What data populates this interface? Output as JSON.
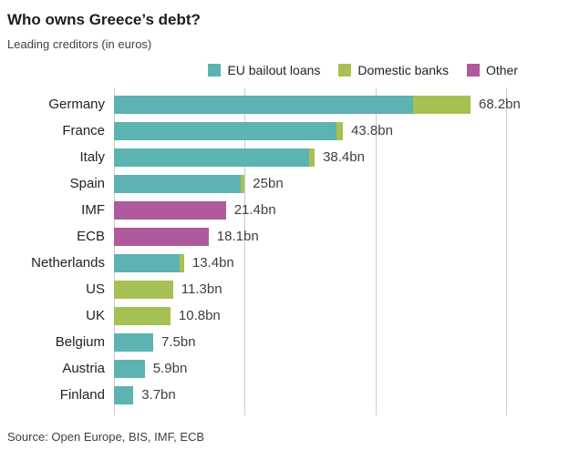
{
  "chart_data": {
    "type": "bar",
    "orientation": "horizontal",
    "title": "Who owns Greece’s debt?",
    "subtitle": "Leading creditors (in euros)",
    "source": "Source: Open Europe, BIS, IMF, ECB",
    "xlim": [
      0,
      75
    ],
    "gridlines": [
      0,
      25,
      50,
      75
    ],
    "grid": "vertical-only",
    "legend_position": "top-right",
    "legend": [
      {
        "label": "EU bailout loans",
        "color": "#5cb3b1"
      },
      {
        "label": "Domestic banks",
        "color": "#a6c153"
      },
      {
        "label": "Other",
        "color": "#ae5a9c"
      }
    ],
    "bars": [
      {
        "label": "Germany",
        "total": 68.2,
        "total_label": "68.2bn",
        "segments": [
          {
            "series": "EU bailout loans",
            "value": 57.2
          },
          {
            "series": "Domestic banks",
            "value": 11.0
          }
        ]
      },
      {
        "label": "France",
        "total": 43.8,
        "total_label": "43.8bn",
        "segments": [
          {
            "series": "EU bailout loans",
            "value": 42.6
          },
          {
            "series": "Domestic banks",
            "value": 1.2
          }
        ]
      },
      {
        "label": "Italy",
        "total": 38.4,
        "total_label": "38.4bn",
        "segments": [
          {
            "series": "EU bailout loans",
            "value": 37.4
          },
          {
            "series": "Domestic banks",
            "value": 1.0
          }
        ]
      },
      {
        "label": "Spain",
        "total": 25,
        "total_label": "25bn",
        "segments": [
          {
            "series": "EU bailout loans",
            "value": 24.3
          },
          {
            "series": "Domestic banks",
            "value": 0.7
          }
        ]
      },
      {
        "label": "IMF",
        "total": 21.4,
        "total_label": "21.4bn",
        "segments": [
          {
            "series": "Other",
            "value": 21.4
          }
        ]
      },
      {
        "label": "ECB",
        "total": 18.1,
        "total_label": "18.1bn",
        "segments": [
          {
            "series": "Other",
            "value": 18.1
          }
        ]
      },
      {
        "label": "Netherlands",
        "total": 13.4,
        "total_label": "13.4bn",
        "segments": [
          {
            "series": "EU bailout loans",
            "value": 12.5
          },
          {
            "series": "Domestic banks",
            "value": 0.9
          }
        ]
      },
      {
        "label": "US",
        "total": 11.3,
        "total_label": "11.3bn",
        "segments": [
          {
            "series": "Domestic banks",
            "value": 11.3
          }
        ]
      },
      {
        "label": "UK",
        "total": 10.8,
        "total_label": "10.8bn",
        "segments": [
          {
            "series": "Domestic banks",
            "value": 10.8
          }
        ]
      },
      {
        "label": "Belgium",
        "total": 7.5,
        "total_label": "7.5bn",
        "segments": [
          {
            "series": "EU bailout loans",
            "value": 7.5
          }
        ]
      },
      {
        "label": "Austria",
        "total": 5.9,
        "total_label": "5.9bn",
        "segments": [
          {
            "series": "EU bailout loans",
            "value": 5.9
          }
        ]
      },
      {
        "label": "Finland",
        "total": 3.7,
        "total_label": "3.7bn",
        "segments": [
          {
            "series": "EU bailout loans",
            "value": 3.7
          }
        ]
      }
    ]
  }
}
